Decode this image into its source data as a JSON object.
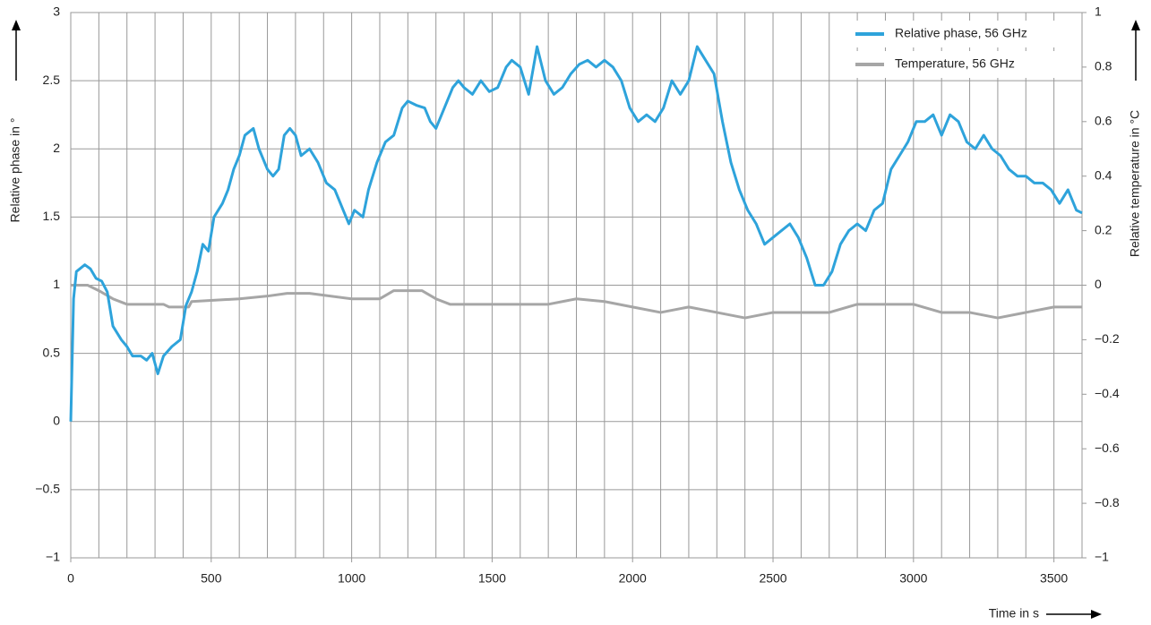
{
  "chart_data": {
    "type": "line",
    "xlabel": "Time in s",
    "ylabel": "Relative phase in °",
    "y2label": "Relative temperature in °C",
    "xlim": [
      0,
      3600
    ],
    "xticks": [
      0,
      500,
      1000,
      1500,
      2000,
      2500,
      3000,
      3500
    ],
    "ylim": [
      -1,
      3
    ],
    "yticks": [
      {
        "value": -1,
        "label": "−1"
      },
      {
        "value": -0.5,
        "label": "−0.5"
      },
      0,
      0.5,
      1,
      1.5,
      2,
      2.5,
      3
    ],
    "y2lim": [
      -1,
      1
    ],
    "y2ticks": [
      {
        "value": -1,
        "label": "−1"
      },
      {
        "value": -0.8,
        "label": "−0.8"
      },
      {
        "value": -0.6,
        "label": "−0.6"
      },
      {
        "value": -0.4,
        "label": "−0.4"
      },
      {
        "value": -0.2,
        "label": "−0.2"
      },
      0,
      0.2,
      0.4,
      0.6,
      0.8,
      1
    ],
    "grid": true,
    "legend": "top-right",
    "series": [
      {
        "name": "Relative phase, 56 GHz",
        "color": "#2ea3db",
        "x": [
          0,
          10,
          20,
          50,
          70,
          90,
          110,
          130,
          150,
          180,
          200,
          220,
          250,
          270,
          290,
          310,
          330,
          360,
          390,
          410,
          430,
          450,
          470,
          490,
          510,
          540,
          560,
          580,
          600,
          620,
          650,
          670,
          700,
          720,
          740,
          760,
          780,
          800,
          820,
          850,
          880,
          910,
          940,
          970,
          990,
          1010,
          1040,
          1060,
          1090,
          1120,
          1150,
          1180,
          1200,
          1230,
          1260,
          1280,
          1300,
          1330,
          1360,
          1380,
          1400,
          1430,
          1460,
          1490,
          1520,
          1550,
          1570,
          1600,
          1630,
          1660,
          1690,
          1720,
          1750,
          1780,
          1810,
          1840,
          1870,
          1900,
          1930,
          1960,
          1990,
          2020,
          2050,
          2080,
          2110,
          2140,
          2170,
          2200,
          2230,
          2260,
          2290,
          2320,
          2350,
          2380,
          2410,
          2440,
          2470,
          2500,
          2530,
          2560,
          2590,
          2620,
          2650,
          2680,
          2710,
          2740,
          2770,
          2800,
          2830,
          2860,
          2890,
          2920,
          2950,
          2980,
          3010,
          3040,
          3070,
          3100,
          3130,
          3160,
          3190,
          3220,
          3250,
          3280,
          3310,
          3340,
          3370,
          3400,
          3430,
          3460,
          3490,
          3520,
          3550,
          3580,
          3600
        ],
        "values": [
          0,
          0.9,
          1.1,
          1.15,
          1.12,
          1.05,
          1.03,
          0.95,
          0.7,
          0.6,
          0.55,
          0.48,
          0.48,
          0.45,
          0.5,
          0.35,
          0.48,
          0.55,
          0.6,
          0.85,
          0.95,
          1.1,
          1.3,
          1.25,
          1.5,
          1.6,
          1.7,
          1.85,
          1.95,
          2.1,
          2.15,
          2.0,
          1.85,
          1.8,
          1.85,
          2.1,
          2.15,
          2.1,
          1.95,
          2.0,
          1.9,
          1.75,
          1.7,
          1.55,
          1.45,
          1.55,
          1.5,
          1.7,
          1.9,
          2.05,
          2.1,
          2.3,
          2.35,
          2.32,
          2.3,
          2.2,
          2.15,
          2.3,
          2.45,
          2.5,
          2.45,
          2.4,
          2.5,
          2.42,
          2.45,
          2.6,
          2.65,
          2.6,
          2.4,
          2.75,
          2.5,
          2.4,
          2.45,
          2.55,
          2.62,
          2.65,
          2.6,
          2.65,
          2.6,
          2.5,
          2.3,
          2.2,
          2.25,
          2.2,
          2.3,
          2.5,
          2.4,
          2.5,
          2.75,
          2.65,
          2.55,
          2.2,
          1.9,
          1.7,
          1.55,
          1.45,
          1.3,
          1.35,
          1.4,
          1.45,
          1.35,
          1.2,
          1.0,
          1.0,
          1.1,
          1.3,
          1.4,
          1.45,
          1.4,
          1.55,
          1.6,
          1.85,
          1.95,
          2.05,
          2.2,
          2.2,
          2.25,
          2.1,
          2.25,
          2.2,
          2.05,
          2.0,
          2.1,
          2.0,
          1.95,
          1.85,
          1.8,
          1.8,
          1.75,
          1.75,
          1.7,
          1.6,
          1.7,
          1.55,
          1.53
        ]
      },
      {
        "name": "Temperature, 56 GHz",
        "color": "#a6a6a6",
        "axis": "y2",
        "x": [
          0,
          60,
          100,
          150,
          200,
          330,
          350,
          420,
          430,
          600,
          700,
          770,
          850,
          1000,
          1100,
          1150,
          1250,
          1300,
          1350,
          1700,
          1800,
          1900,
          2000,
          2100,
          2200,
          2300,
          2400,
          2500,
          2700,
          2800,
          3000,
          3100,
          3200,
          3300,
          3400,
          3500,
          3600
        ],
        "values": [
          0,
          0,
          -0.02,
          -0.05,
          -0.07,
          -0.07,
          -0.08,
          -0.08,
          -0.06,
          -0.05,
          -0.04,
          -0.03,
          -0.03,
          -0.05,
          -0.05,
          -0.02,
          -0.02,
          -0.05,
          -0.07,
          -0.07,
          -0.05,
          -0.06,
          -0.08,
          -0.1,
          -0.08,
          -0.1,
          -0.12,
          -0.1,
          -0.1,
          -0.07,
          -0.07,
          -0.1,
          -0.1,
          -0.12,
          -0.1,
          -0.08,
          -0.08
        ]
      }
    ]
  }
}
